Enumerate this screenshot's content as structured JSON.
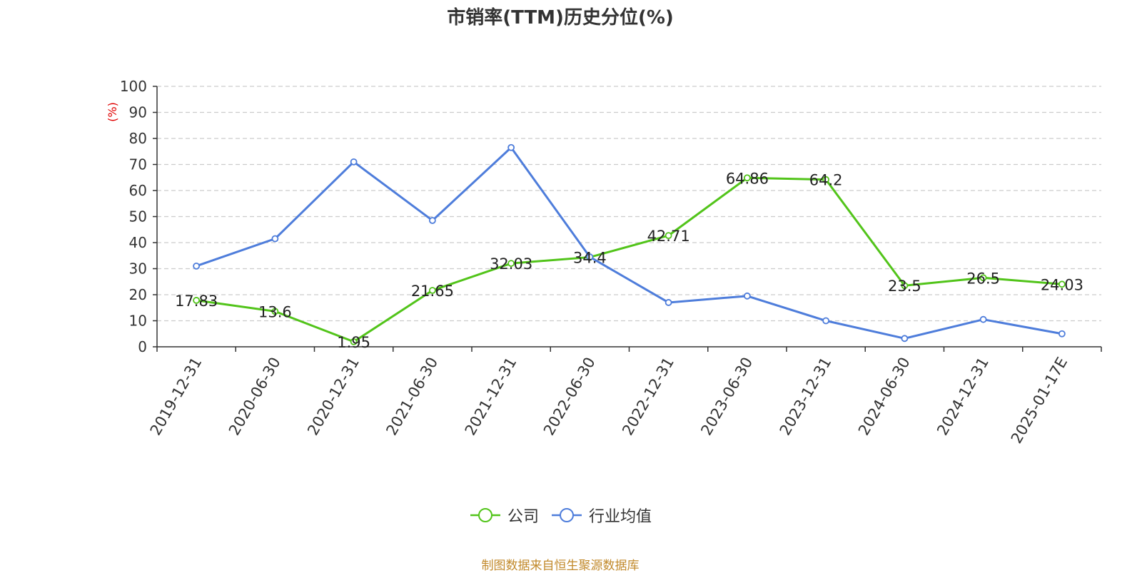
{
  "colors": {
    "company": "#52c41a",
    "industry": "#4e7ddb",
    "ylabel": "#e00000",
    "source": "#c28a2c"
  },
  "source_text": "制图数据来自恒生聚源数据库",
  "chart_data": {
    "type": "line",
    "title": "市销率(TTM)历史分位(%)",
    "ylabel": "(%)",
    "xlabel": "",
    "ylim": [
      0,
      100
    ],
    "yticks": [
      0,
      10,
      20,
      30,
      40,
      50,
      60,
      70,
      80,
      90,
      100
    ],
    "grid": true,
    "legend_position": "bottom",
    "categories": [
      "2019-12-31",
      "2020-06-30",
      "2020-12-31",
      "2021-06-30",
      "2021-12-31",
      "2022-06-30",
      "2022-12-31",
      "2023-06-30",
      "2023-12-31",
      "2024-06-30",
      "2024-12-31",
      "2025-01-17E"
    ],
    "series": [
      {
        "name": "公司",
        "color": "#52c41a",
        "show_labels": true,
        "labels": [
          "17.83",
          "13.6",
          "1.95",
          "21.65",
          "32.03",
          "34.4",
          "42.71",
          "64.86",
          "64.2",
          "23.5",
          "26.5",
          "24.03"
        ],
        "values": [
          17.83,
          13.6,
          1.95,
          21.65,
          32.03,
          34.4,
          42.71,
          64.86,
          64.2,
          23.5,
          26.5,
          24.03
        ]
      },
      {
        "name": "行业均值",
        "color": "#4e7ddb",
        "show_labels": false,
        "values": [
          31,
          41.5,
          71,
          48.5,
          76.5,
          34.5,
          17,
          19.5,
          10,
          3.2,
          10.5,
          5
        ]
      }
    ]
  }
}
